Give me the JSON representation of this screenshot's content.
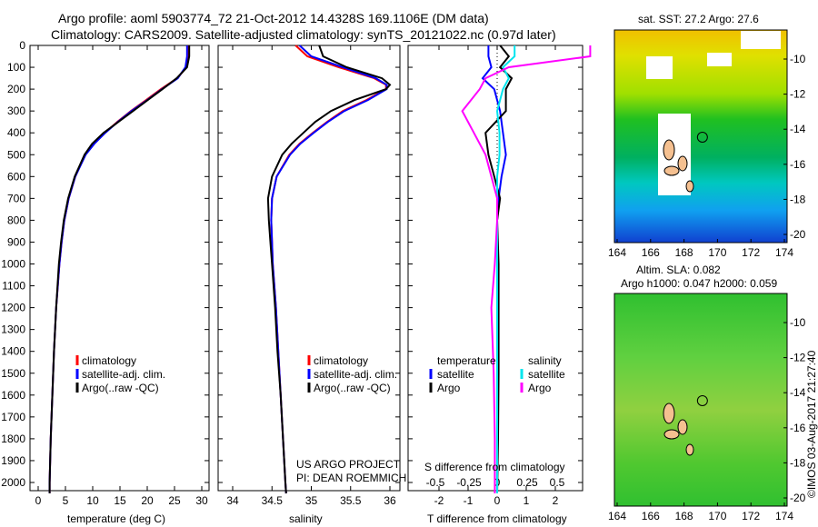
{
  "title": "Argo profile: aoml 5903774_72 21-Oct-2012 14.4328S 169.1106E (DM data)",
  "subtitle": "Climatology: CARS2009. Satellite-adjusted climatology: synTS_20121022.nc (0.97d later)",
  "credit": "©IMOS 03-Aug-2017 21:27:40",
  "project": "US ARGO PROJECT",
  "pi": "PI: DEAN ROEMMICH",
  "colors": {
    "climatology": "#ff0000",
    "satellite": "#0000ff",
    "argo": "#000000",
    "sal_satellite": "#00e5ee",
    "sal_argo": "#ff00ff"
  },
  "legend": {
    "climatology": "climatology",
    "satellite": "satellite-adj. clim.",
    "argo": "Argo(..raw -QC)"
  },
  "diff_legend": {
    "temperature": "temperature",
    "salinity": "salinity",
    "satellite": "satellite",
    "argo": "Argo"
  },
  "map1": {
    "title": "sat. SST: 27.2 Argo: 27.6",
    "xticks": [
      "164",
      "166",
      "168",
      "170",
      "172",
      "174"
    ],
    "yticks": [
      "-10",
      "-12",
      "-14",
      "-16",
      "-18",
      "-20"
    ]
  },
  "map2": {
    "title1": "Altim. SLA: 0.082",
    "title2": "Argo h1000: 0.047 h2000: 0.059",
    "xticks": [
      "164",
      "166",
      "168",
      "170",
      "172",
      "174"
    ],
    "yticks": [
      "-10",
      "-12",
      "-14",
      "-16",
      "-18",
      "-20"
    ]
  },
  "chart_data": [
    {
      "type": "line",
      "xlabel": "temperature (deg C)",
      "xlim": [
        -1,
        31
      ],
      "ylim": [
        2050,
        0
      ],
      "xticks": [
        0,
        5,
        10,
        15,
        20,
        25,
        30
      ],
      "yticks": [
        0,
        100,
        200,
        300,
        400,
        500,
        600,
        700,
        800,
        900,
        1000,
        1100,
        1200,
        1300,
        1400,
        1500,
        1600,
        1700,
        1800,
        1900,
        2000
      ],
      "depth": [
        0,
        50,
        100,
        150,
        200,
        250,
        300,
        350,
        400,
        450,
        500,
        600,
        700,
        800,
        900,
        1000,
        1200,
        1400,
        1600,
        1800,
        2000,
        2050
      ],
      "series": [
        {
          "name": "climatology",
          "values": [
            27.6,
            27.6,
            27.2,
            25.5,
            22.5,
            19.8,
            17.0,
            14.5,
            12.2,
            10.2,
            8.6,
            6.8,
            5.6,
            4.8,
            4.3,
            3.9,
            3.3,
            2.9,
            2.6,
            2.3,
            2.1,
            2.1
          ]
        },
        {
          "name": "satellite",
          "values": [
            27.3,
            27.3,
            27.0,
            25.6,
            22.7,
            20.0,
            17.1,
            14.6,
            12.3,
            10.3,
            8.7,
            6.8,
            5.6,
            4.8,
            4.3,
            3.9,
            3.3,
            2.9,
            2.6,
            2.3,
            2.1,
            2.1
          ]
        },
        {
          "name": "argo",
          "values": [
            27.7,
            27.7,
            27.3,
            25.4,
            22.8,
            20.1,
            17.4,
            14.7,
            12.0,
            9.9,
            8.5,
            6.7,
            5.5,
            4.7,
            4.2,
            3.8,
            3.3,
            2.9,
            2.6,
            2.3,
            2.1,
            2.1
          ]
        }
      ]
    },
    {
      "type": "line",
      "xlabel": "salinity",
      "xlim": [
        33.9,
        36.2
      ],
      "ylim": [
        2050,
        0
      ],
      "xticks": [
        34,
        34.5,
        35,
        35.5,
        36
      ],
      "depth": [
        0,
        50,
        100,
        150,
        180,
        200,
        250,
        300,
        350,
        400,
        450,
        500,
        600,
        700,
        800,
        900,
        1000,
        1200,
        1400,
        1600,
        1800,
        2000,
        2050
      ],
      "series": [
        {
          "name": "climatology",
          "values": [
            34.8,
            34.95,
            35.35,
            35.8,
            35.95,
            35.95,
            35.7,
            35.4,
            35.2,
            35.02,
            34.85,
            34.72,
            34.56,
            34.5,
            34.49,
            34.5,
            34.51,
            34.55,
            34.58,
            34.61,
            34.64,
            34.67,
            34.68
          ]
        },
        {
          "name": "satellite",
          "values": [
            34.85,
            35.0,
            35.4,
            35.82,
            35.96,
            35.96,
            35.72,
            35.42,
            35.21,
            35.03,
            34.86,
            34.73,
            34.56,
            34.5,
            34.49,
            34.5,
            34.51,
            34.55,
            34.58,
            34.61,
            34.64,
            34.67,
            34.68
          ]
        },
        {
          "name": "argo",
          "values": [
            35.1,
            35.15,
            35.45,
            35.9,
            36.0,
            35.95,
            35.55,
            35.25,
            35.05,
            34.9,
            34.75,
            34.63,
            34.5,
            34.45,
            34.46,
            34.48,
            34.5,
            34.54,
            34.57,
            34.61,
            34.64,
            34.67,
            34.68
          ]
        }
      ]
    },
    {
      "type": "line",
      "xlabel": "T difference from climatology",
      "xlabel2": "S difference from climatology",
      "xlim": [
        -3,
        3
      ],
      "ylim": [
        2050,
        0
      ],
      "xticks": [
        -2,
        -1,
        0,
        1,
        2
      ],
      "xticks2": [
        -0.5,
        -0.25,
        0,
        0.25,
        0.5
      ],
      "depth": [
        0,
        50,
        100,
        150,
        200,
        300,
        400,
        500,
        600,
        700,
        800,
        1000,
        1200,
        1500,
        1800,
        2050
      ],
      "series": [
        {
          "name": "temperature satellite",
          "values": [
            -0.3,
            -0.3,
            -0.2,
            -0.5,
            -0.1,
            0.1,
            0.2,
            0.3,
            0.15,
            0.05,
            0.0,
            0.0,
            0.0,
            0.0,
            0.0,
            0.0
          ]
        },
        {
          "name": "temperature Argo",
          "values": [
            0.1,
            0.4,
            0.1,
            0.5,
            0.3,
            0.3,
            -0.4,
            -0.3,
            -0.1,
            0.1,
            0.0,
            0.05,
            0.05,
            0.05,
            0.03,
            0.0
          ]
        },
        {
          "name": "salinity satellite",
          "values": [
            0.15,
            0.15,
            0.05,
            0.1,
            0.05,
            0.0,
            0.02,
            0.02,
            0.0,
            0.0,
            0.0,
            0.0,
            0.0,
            0.0,
            0.0,
            0.0
          ]
        },
        {
          "name": "salinity Argo",
          "values": [
            0.8,
            0.8,
            0.1,
            -0.1,
            -0.15,
            -0.3,
            -0.2,
            -0.1,
            -0.05,
            0.0,
            0.0,
            -0.02,
            -0.05,
            -0.03,
            -0.02,
            -0.02
          ]
        }
      ]
    }
  ]
}
